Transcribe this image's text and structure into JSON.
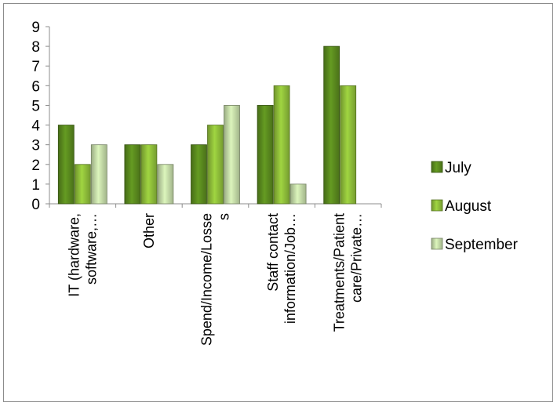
{
  "chart_data": {
    "type": "bar",
    "categories": [
      [
        "IT (hardware,",
        "software,…"
      ],
      [
        "Other"
      ],
      [
        "Spend/Income/Losse",
        "s"
      ],
      [
        "Staff contact",
        "information/Job…"
      ],
      [
        "Treatments/Patient",
        "care/Private…"
      ]
    ],
    "series": [
      {
        "name": "July",
        "values": [
          4,
          3,
          3,
          5,
          8
        ],
        "color": "#5a8a1e"
      },
      {
        "name": "August",
        "values": [
          2,
          3,
          4,
          6,
          6
        ],
        "color": "#8fbe3a"
      },
      {
        "name": "September",
        "values": [
          3,
          2,
          5,
          1,
          0
        ],
        "color": "#c4dba8"
      }
    ],
    "ylim": [
      0,
      9
    ],
    "yticks": [
      0,
      1,
      2,
      3,
      4,
      5,
      6,
      7,
      8,
      9
    ],
    "grid": false,
    "legend_position": "right",
    "title": "",
    "xlabel": "",
    "ylabel": ""
  }
}
